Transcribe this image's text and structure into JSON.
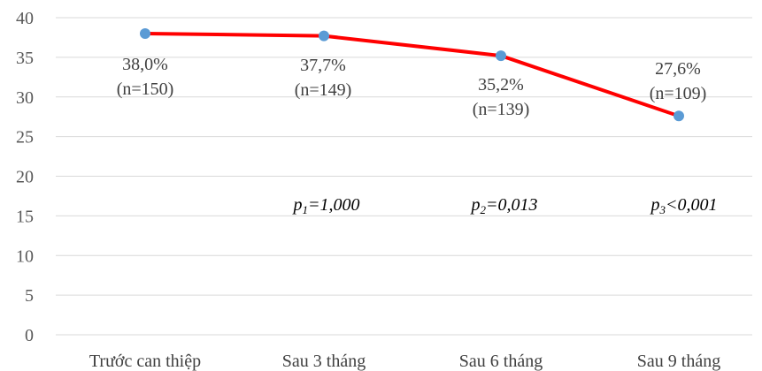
{
  "chart_data": {
    "type": "line",
    "categories": [
      "Trước can thiệp",
      "Sau 3 tháng",
      "Sau 6 tháng",
      "Sau 9 tháng"
    ],
    "series": [
      {
        "values": [
          38.0,
          37.7,
          35.2,
          27.6
        ],
        "color": "#ff0000",
        "marker_color": "#5b9bd5"
      }
    ],
    "data_labels": [
      {
        "pct": "38,0%",
        "n": "(n=150)"
      },
      {
        "pct": "37,7%",
        "n": "(n=149)"
      },
      {
        "pct": "35,2%",
        "n": "(n=139)"
      },
      {
        "pct": "27,6%",
        "n": "(n=109)"
      }
    ],
    "annotations": [
      {
        "category_index": 1,
        "p": "p",
        "sub": "1",
        "rest": "=1,000"
      },
      {
        "category_index": 2,
        "p": "p",
        "sub": "2",
        "rest": "=0,013"
      },
      {
        "category_index": 3,
        "p": "p",
        "sub": "3",
        "rest": "<0,001"
      }
    ],
    "yticks": [
      0,
      5,
      10,
      15,
      20,
      25,
      30,
      35,
      40
    ],
    "ylim": [
      0,
      40
    ],
    "grid": true,
    "gridline_color": "#d9d9d9"
  }
}
